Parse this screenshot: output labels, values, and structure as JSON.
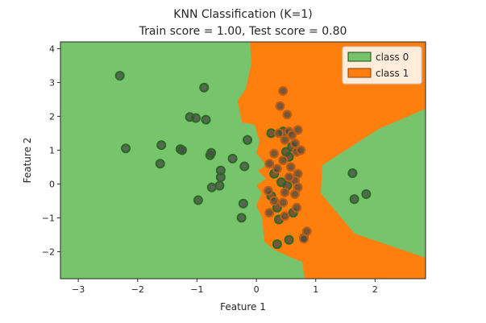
{
  "chart_data": {
    "type": "scatter",
    "title": "KNN Classification (K=1)",
    "subtitle": "Train score = 1.00, Test score = 0.80",
    "xlabel": "Feature 1",
    "ylabel": "Feature 2",
    "xlim": [
      -3.3,
      2.85
    ],
    "ylim": [
      -2.8,
      4.2
    ],
    "xticks": [
      -3,
      -2,
      -1,
      0,
      1,
      2
    ],
    "yticks": [
      -2,
      -1,
      0,
      1,
      2,
      3,
      4
    ],
    "xtick_labels": [
      "−3",
      "−2",
      "−1",
      "0",
      "1",
      "2"
    ],
    "ytick_labels": [
      "−2",
      "−1",
      "0",
      "1",
      "2",
      "3",
      "4"
    ],
    "grid": false,
    "legend_position": "top-right",
    "background_regions": [
      {
        "name": "class 0",
        "color": "#77c46d"
      },
      {
        "name": "class 1",
        "color": "#ff7f0e"
      }
    ],
    "series": [
      {
        "name": "class 0",
        "color": "#2a6a22",
        "points": [
          [
            -2.3,
            3.2
          ],
          [
            -2.2,
            1.05
          ],
          [
            -1.6,
            1.15
          ],
          [
            -1.62,
            0.6
          ],
          [
            -1.28,
            1.03
          ],
          [
            -1.25,
            1.0
          ],
          [
            -1.12,
            1.98
          ],
          [
            -1.02,
            1.95
          ],
          [
            -0.88,
            2.85
          ],
          [
            -0.85,
            1.9
          ],
          [
            -0.78,
            0.85
          ],
          [
            -0.76,
            0.92
          ],
          [
            -0.6,
            0.4
          ],
          [
            -0.6,
            0.2
          ],
          [
            -0.62,
            -0.05
          ],
          [
            -0.75,
            -0.1
          ],
          [
            -0.98,
            -0.48
          ],
          [
            -0.4,
            0.75
          ],
          [
            -0.2,
            0.52
          ],
          [
            -0.15,
            1.3
          ],
          [
            -0.22,
            -0.58
          ],
          [
            -0.25,
            -1.0
          ],
          [
            0.25,
            1.5
          ],
          [
            0.45,
            1.55
          ],
          [
            0.5,
            0.95
          ],
          [
            0.6,
            1.1
          ],
          [
            0.55,
            0.8
          ],
          [
            0.3,
            0.3
          ],
          [
            0.42,
            0.05
          ],
          [
            0.52,
            -0.05
          ],
          [
            0.25,
            -0.35
          ],
          [
            0.35,
            -0.7
          ],
          [
            0.38,
            -1.05
          ],
          [
            0.62,
            -0.85
          ],
          [
            0.35,
            -1.78
          ],
          [
            0.55,
            -1.65
          ],
          [
            0.8,
            -1.6
          ],
          [
            1.62,
            0.32
          ],
          [
            1.65,
            -0.45
          ],
          [
            1.85,
            -0.3
          ]
        ]
      },
      {
        "name": "class 1",
        "color": "#bf5f14",
        "points": [
          [
            0.45,
            2.75
          ],
          [
            0.4,
            2.3
          ],
          [
            0.52,
            2.05
          ],
          [
            0.55,
            1.55
          ],
          [
            0.6,
            1.45
          ],
          [
            0.48,
            1.3
          ],
          [
            0.65,
            1.2
          ],
          [
            0.38,
            1.5
          ],
          [
            0.7,
            1.6
          ],
          [
            0.68,
            0.95
          ],
          [
            0.75,
            1.0
          ],
          [
            0.3,
            0.9
          ],
          [
            0.45,
            0.7
          ],
          [
            0.58,
            0.5
          ],
          [
            0.7,
            0.3
          ],
          [
            0.22,
            0.6
          ],
          [
            0.35,
            0.45
          ],
          [
            0.65,
            0.1
          ],
          [
            0.7,
            -0.1
          ],
          [
            0.55,
            0.2
          ],
          [
            0.48,
            -0.25
          ],
          [
            0.65,
            -0.3
          ],
          [
            0.2,
            -0.2
          ],
          [
            0.3,
            -0.5
          ],
          [
            0.45,
            -0.55
          ],
          [
            0.68,
            -0.7
          ],
          [
            0.22,
            -0.85
          ],
          [
            0.48,
            -0.95
          ],
          [
            0.85,
            -1.4
          ],
          [
            0.8,
            -1.62
          ]
        ]
      }
    ],
    "legend": [
      "class 0",
      "class 1"
    ]
  }
}
